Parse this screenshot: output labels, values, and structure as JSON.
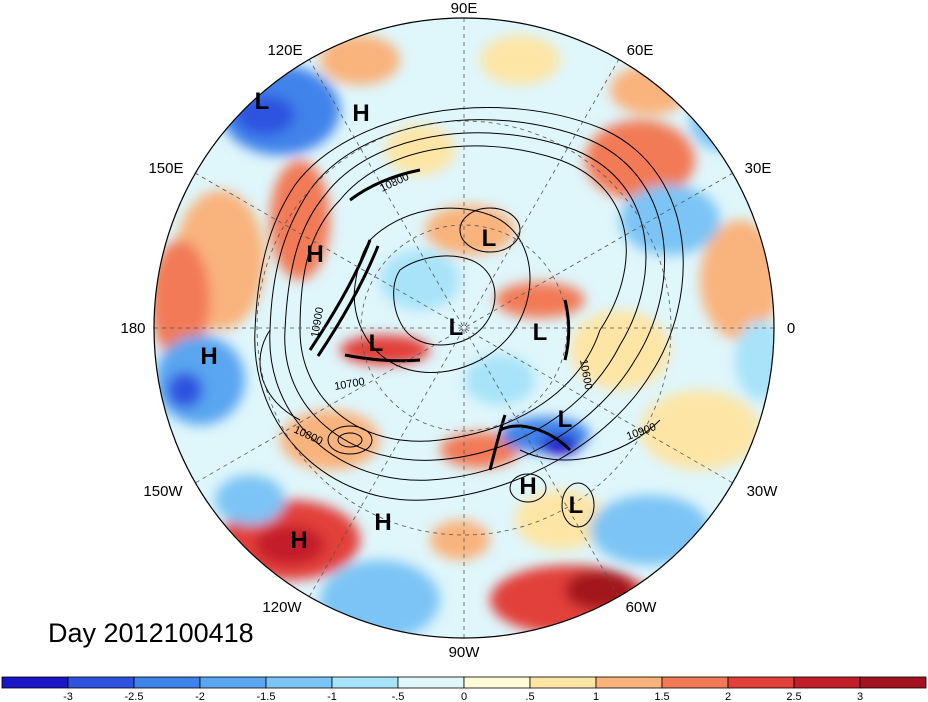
{
  "title": "",
  "day_label": "Day 2012100418",
  "longitude_labels": [
    "90E",
    "60E",
    "30E",
    "0",
    "30W",
    "60W",
    "90W",
    "120W",
    "150W",
    "180",
    "150E",
    "120E"
  ],
  "contour_labels": [
    "10800",
    "10900",
    "10700",
    "10800",
    "10600",
    "10900"
  ],
  "pressure_centers": [
    {
      "type": "L",
      "region": "east-siberia"
    },
    {
      "type": "H",
      "region": "siberia"
    },
    {
      "type": "L",
      "region": "kara-sea"
    },
    {
      "type": "H",
      "region": "bering"
    },
    {
      "type": "L",
      "region": "north-pole"
    },
    {
      "type": "L",
      "region": "greenland-east"
    },
    {
      "type": "L",
      "region": "alaska"
    },
    {
      "type": "H",
      "region": "central-pacific"
    },
    {
      "type": "L",
      "region": "north-atlantic"
    },
    {
      "type": "H",
      "region": "western-atlantic"
    },
    {
      "type": "L",
      "region": "mid-atlantic"
    },
    {
      "type": "H",
      "region": "west-coast-us"
    },
    {
      "type": "H",
      "region": "east-pacific"
    }
  ],
  "colorbar": {
    "ticks": [
      "-3",
      "-2.5",
      "-2",
      "-1.5",
      "-1",
      "-.5",
      "0",
      ".5",
      "1",
      "1.5",
      "2",
      "2.5",
      "3"
    ],
    "colors": [
      "#1a15c6",
      "#2f53e0",
      "#3f83ea",
      "#5aa6f0",
      "#7cc4f5",
      "#a7e3f9",
      "#dff6fb",
      "#fffbd9",
      "#fde5a6",
      "#f9b37d",
      "#f27a56",
      "#e2413a",
      "#c41d2a",
      "#a3121f"
    ]
  }
}
